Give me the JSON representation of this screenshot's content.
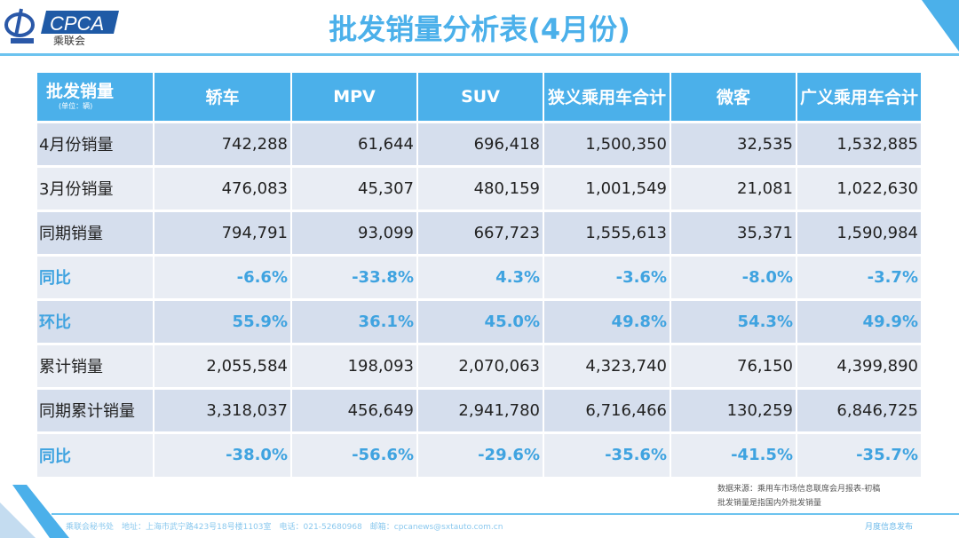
{
  "logo": {
    "text": "CPCA",
    "subtitle": "乘联会"
  },
  "title": "批发销量分析表(4月份)",
  "table": {
    "header_first": "批发销量",
    "header_unit": "(单位：辆)",
    "columns": [
      "轿车",
      "MPV",
      "SUV",
      "狭义乘用车合计",
      "微客",
      "广义乘用车合计"
    ],
    "rows": [
      {
        "label": "4月份销量",
        "values": [
          "742,288",
          "61,644",
          "696,418",
          "1,500,350",
          "32,535",
          "1,532,885"
        ],
        "style": "dark"
      },
      {
        "label": "3月份销量",
        "values": [
          "476,083",
          "45,307",
          "480,159",
          "1,001,549",
          "21,081",
          "1,022,630"
        ],
        "style": "light"
      },
      {
        "label": "同期销量",
        "values": [
          "794,791",
          "93,099",
          "667,723",
          "1,555,613",
          "35,371",
          "1,590,984"
        ],
        "style": "dark"
      },
      {
        "label": "同比",
        "values": [
          "-6.6%",
          "-33.8%",
          "4.3%",
          "-3.6%",
          "-8.0%",
          "-3.7%"
        ],
        "style": "light pct"
      },
      {
        "label": "环比",
        "values": [
          "55.9%",
          "36.1%",
          "45.0%",
          "49.8%",
          "54.3%",
          "49.9%"
        ],
        "style": "dark pct"
      },
      {
        "label": "累计销量",
        "values": [
          "2,055,584",
          "198,093",
          "2,070,063",
          "4,323,740",
          "76,150",
          "4,399,890"
        ],
        "style": "light"
      },
      {
        "label": "同期累计销量",
        "values": [
          "3,318,037",
          "456,649",
          "2,941,780",
          "6,716,466",
          "130,259",
          "6,846,725"
        ],
        "style": "dark"
      },
      {
        "label": "同比",
        "values": [
          "-38.0%",
          "-56.6%",
          "-29.6%",
          "-35.6%",
          "-41.5%",
          "-35.7%"
        ],
        "style": "light pct"
      }
    ]
  },
  "notes": [
    "数据来源：乘用车市场信息联席会月报表-初稿",
    "批发销量是指国内外批发销量"
  ],
  "footer": {
    "text": "乘联会秘书处　地址：上海市武宁路423号18号楼1103室　电话：021-52680968　邮箱：cpcanews@sxtauto.com.cn",
    "right": "月度信息发布"
  },
  "colors": {
    "accent": "#4bb0ea",
    "row_dark": "#d5deed",
    "row_light": "#e9edf4",
    "percent": "#3fa3e0"
  }
}
